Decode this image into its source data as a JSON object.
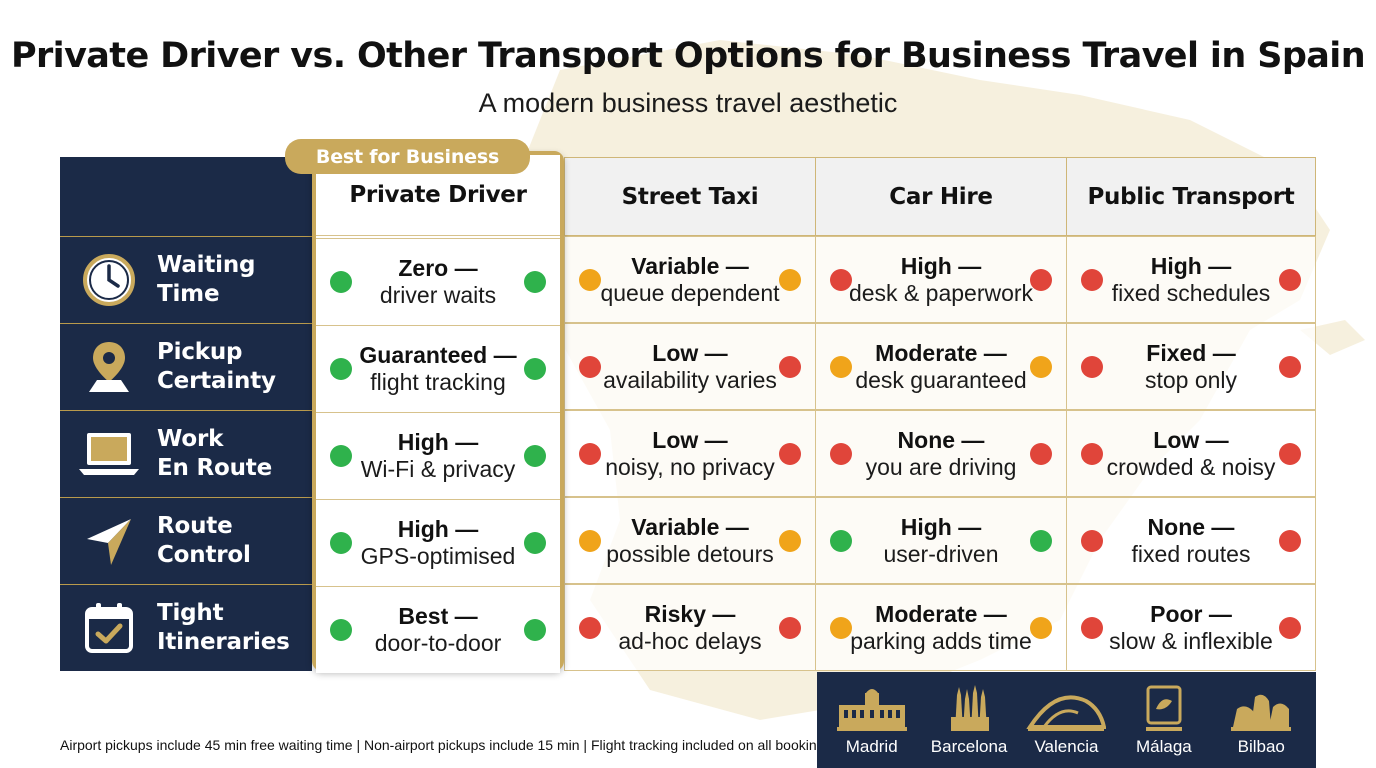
{
  "title": "Private Driver vs. Other Transport Options for Business Travel in Spain",
  "subtitle": "A modern business travel aesthetic",
  "badge": "Best for Business",
  "colors": {
    "navy": "#1b2a47",
    "gold": "#c9a95c",
    "good": "#2fb24c",
    "medium": "#f0a41a",
    "poor": "#e0453a"
  },
  "columns": [
    "Private Driver",
    "Street Taxi",
    "Car Hire",
    "Public Transport"
  ],
  "rows": [
    {
      "label": "Waiting\nTime",
      "icon": "clock-icon",
      "cells": [
        {
          "level": "Zero —",
          "detail": "driver waits",
          "status": "good"
        },
        {
          "level": "Variable —",
          "detail": "queue dependent",
          "status": "medium"
        },
        {
          "level": "High —",
          "detail": "desk & paperwork",
          "status": "poor"
        },
        {
          "level": "High —",
          "detail": "fixed schedules",
          "status": "poor"
        }
      ]
    },
    {
      "label": "Pickup\nCertainty",
      "icon": "map-pin-icon",
      "cells": [
        {
          "level": "Guaranteed —",
          "detail": "flight tracking",
          "status": "good"
        },
        {
          "level": "Low —",
          "detail": "availability varies",
          "status": "poor"
        },
        {
          "level": "Moderate —",
          "detail": "desk guaranteed",
          "status": "medium"
        },
        {
          "level": "Fixed —",
          "detail": "stop only",
          "status": "poor"
        }
      ]
    },
    {
      "label": "Work\nEn Route",
      "icon": "laptop-icon",
      "cells": [
        {
          "level": "High —",
          "detail": "Wi-Fi & privacy",
          "status": "good"
        },
        {
          "level": "Low —",
          "detail": "noisy, no privacy",
          "status": "poor"
        },
        {
          "level": "None —",
          "detail": "you are driving",
          "status": "poor"
        },
        {
          "level": "Low —",
          "detail": "crowded & noisy",
          "status": "poor"
        }
      ]
    },
    {
      "label": "Route\nControl",
      "icon": "navigation-arrow-icon",
      "cells": [
        {
          "level": "High —",
          "detail": "GPS-optimised",
          "status": "good"
        },
        {
          "level": "Variable —",
          "detail": "possible detours",
          "status": "medium"
        },
        {
          "level": "High —",
          "detail": "user-driven",
          "status": "good"
        },
        {
          "level": "None —",
          "detail": "fixed routes",
          "status": "poor"
        }
      ]
    },
    {
      "label": "Tight\nItineraries",
      "icon": "calendar-check-icon",
      "cells": [
        {
          "level": "Best —",
          "detail": "door-to-door",
          "status": "good"
        },
        {
          "level": "Risky —",
          "detail": "ad-hoc delays",
          "status": "poor"
        },
        {
          "level": "Moderate —",
          "detail": "parking adds time",
          "status": "medium"
        },
        {
          "level": "Poor —",
          "detail": "slow & inflexible",
          "status": "poor"
        }
      ]
    }
  ],
  "footnote": "Airport pickups include 45 min free waiting time | Non-airport pickups include 15 min | Flight tracking included on all bookings",
  "cities": [
    {
      "name": "Madrid",
      "icon": "royal-palace-icon"
    },
    {
      "name": "Barcelona",
      "icon": "sagrada-familia-icon"
    },
    {
      "name": "Valencia",
      "icon": "arts-sciences-icon"
    },
    {
      "name": "Málaga",
      "icon": "malaga-logo-icon"
    },
    {
      "name": "Bilbao",
      "icon": "guggenheim-icon"
    }
  ]
}
